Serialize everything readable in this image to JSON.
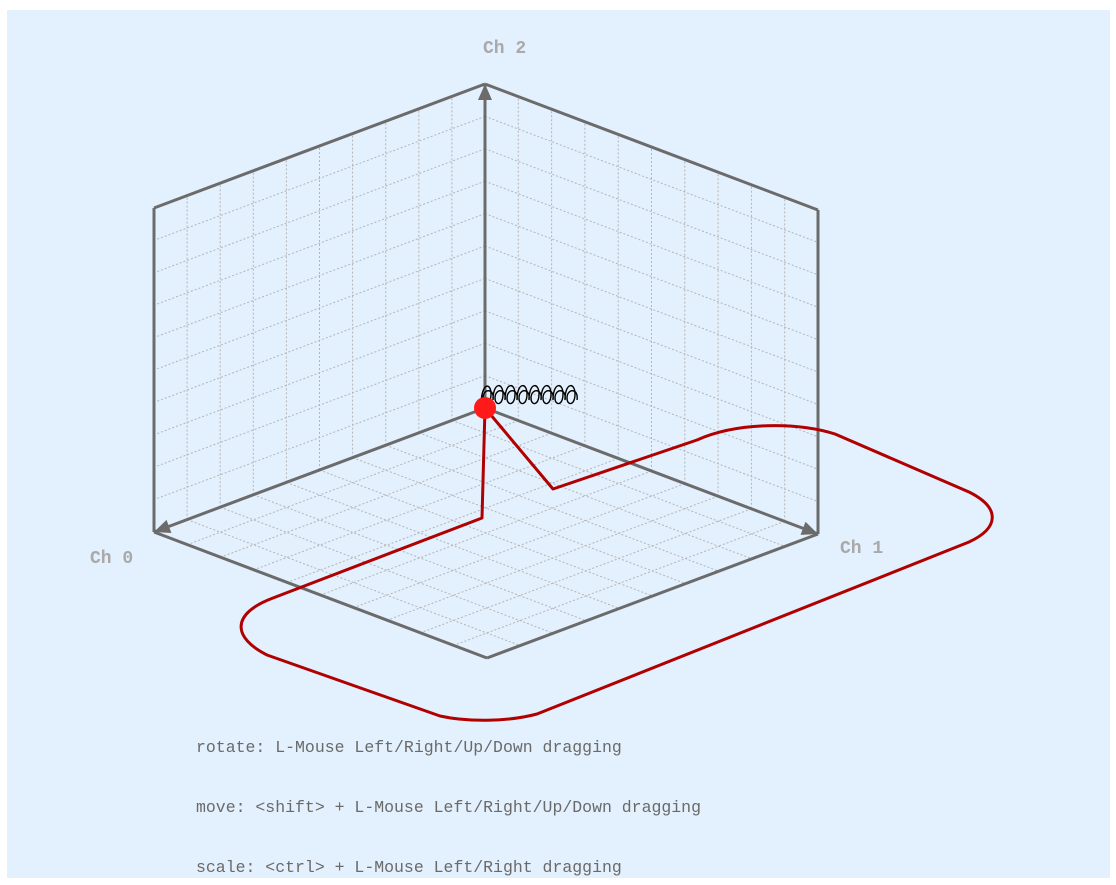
{
  "axes": {
    "x_label": "Ch 0",
    "y_label": "Ch 1",
    "z_label": "Ch 2"
  },
  "help": {
    "rotate": "rotate: L-Mouse Left/Right/Up/Down dragging",
    "move": "move: <shift> + L-Mouse Left/Right/Up/Down dragging",
    "scale": "scale: <ctrl> + L-Mouse Left/Right dragging"
  },
  "colors": {
    "background": "#e3f0fd",
    "frame": "#6b6b6b",
    "grid": "#b5b5b5",
    "trajectory": "#b00000",
    "marker": "#ff1a1a"
  },
  "grid_divisions": 10,
  "icons": {
    "axis_arrow": "triangle-arrow-icon",
    "current_point": "red-dot-icon",
    "spring": "coil-glyph"
  }
}
